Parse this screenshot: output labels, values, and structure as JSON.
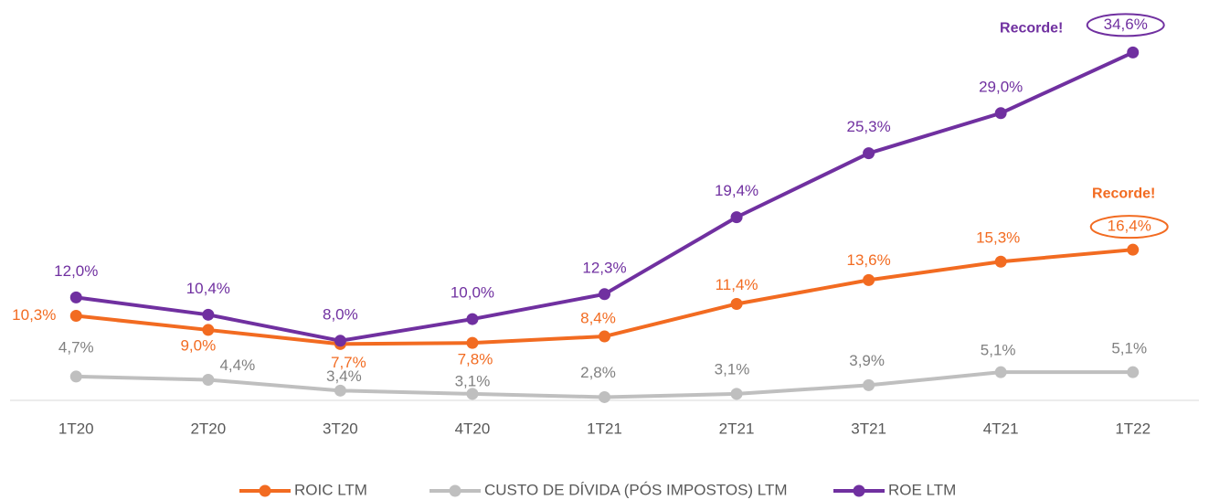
{
  "chart_data": {
    "type": "line",
    "categories": [
      "1T20",
      "2T20",
      "3T20",
      "4T20",
      "1T21",
      "2T21",
      "3T21",
      "4T21",
      "1T22"
    ],
    "series": [
      {
        "name": "ROIC LTM",
        "color": "#f26b21",
        "values": [
          10.3,
          9.0,
          7.7,
          7.8,
          8.4,
          11.4,
          13.6,
          15.3,
          16.4
        ],
        "value_labels": [
          "10,3%",
          "9,0%",
          "7,7%",
          "7,8%",
          "8,4%",
          "11,4%",
          "13,6%",
          "15,3%",
          "16,4%"
        ]
      },
      {
        "name": "CUSTO DE DÍVIDA (PÓS IMPOSTOS) LTM",
        "color": "#bfbfbf",
        "values": [
          4.7,
          4.4,
          3.4,
          3.1,
          2.8,
          3.1,
          3.9,
          5.1,
          5.1
        ],
        "value_labels": [
          "4,7%",
          "4,4%",
          "3,4%",
          "3,1%",
          "2,8%",
          "3,1%",
          "3,9%",
          "5,1%",
          "5,1%"
        ]
      },
      {
        "name": "ROE LTM",
        "color": "#7030a0",
        "values": [
          12.0,
          10.4,
          8.0,
          10.0,
          12.3,
          19.4,
          25.3,
          29.0,
          34.6
        ],
        "value_labels": [
          "12,0%",
          "10,4%",
          "8,0%",
          "10,0%",
          "12,3%",
          "19,4%",
          "25,3%",
          "29,0%",
          "34,6%"
        ]
      }
    ],
    "annotations": [
      "Recorde!",
      "Recorde!"
    ],
    "ylim": [
      2.5,
      37.5
    ],
    "grid": false
  }
}
